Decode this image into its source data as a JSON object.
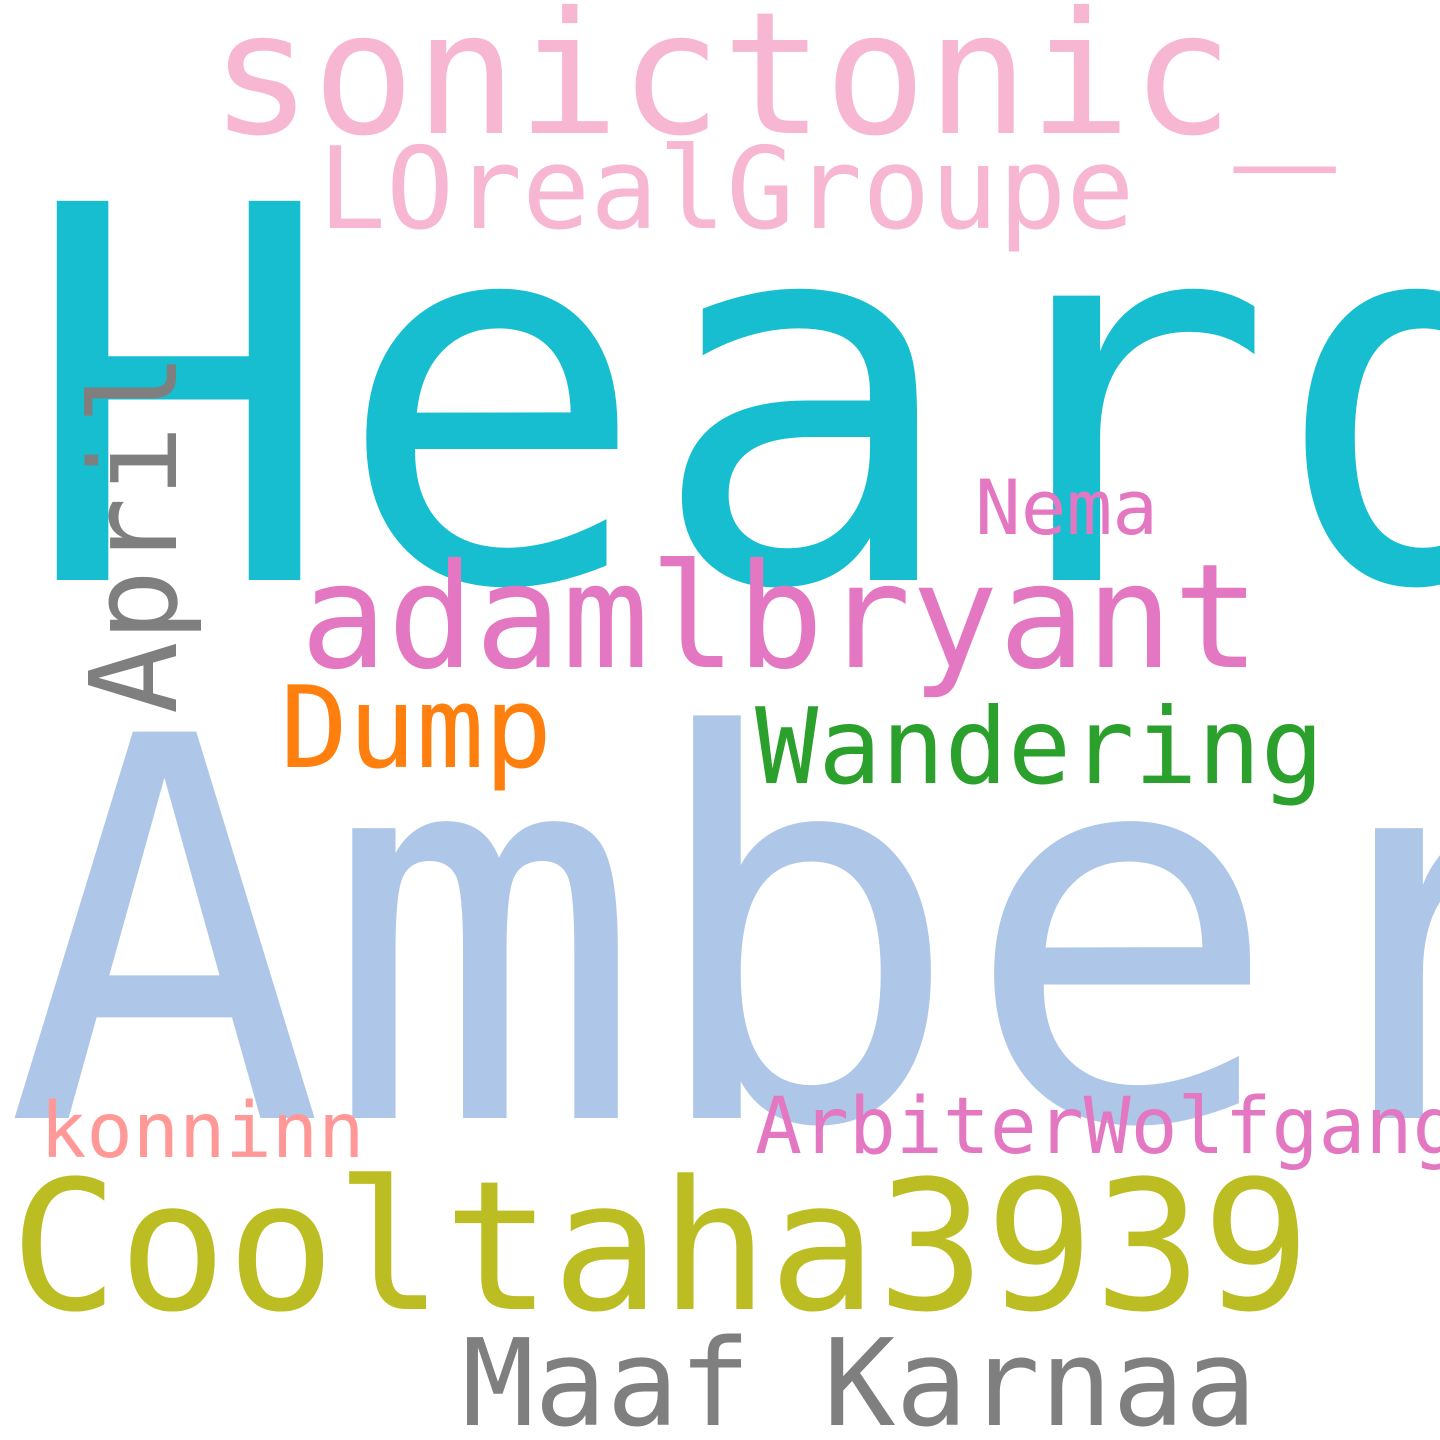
{
  "word_cloud": {
    "words": [
      {
        "id": "heard",
        "text": "Heard",
        "color": "#17becf",
        "orientation": "horizontal"
      },
      {
        "id": "amber",
        "text": "Amber",
        "color": "#aec7e8",
        "orientation": "horizontal"
      },
      {
        "id": "sonictonic",
        "text": "sonictonic_",
        "color": "#f7b6d2",
        "orientation": "horizontal"
      },
      {
        "id": "lorealgroupe",
        "text": "LOrealGroupe",
        "color": "#f7b6d2",
        "orientation": "horizontal"
      },
      {
        "id": "adamlbryant",
        "text": "adamlbryant",
        "color": "#e377c2",
        "orientation": "horizontal"
      },
      {
        "id": "nema",
        "text": "Nema",
        "color": "#e377c2",
        "orientation": "horizontal"
      },
      {
        "id": "dump",
        "text": "Dump",
        "color": "#ff7f0e",
        "orientation": "horizontal"
      },
      {
        "id": "wandering",
        "text": "Wandering",
        "color": "#2ca02c",
        "orientation": "horizontal"
      },
      {
        "id": "april",
        "text": "April",
        "color": "#7f7f7f",
        "orientation": "vertical"
      },
      {
        "id": "konninn",
        "text": "konninn",
        "color": "#ff9896",
        "orientation": "horizontal"
      },
      {
        "id": "arbiter",
        "text": "ArbiterWolfgang",
        "color": "#e377c2",
        "orientation": "horizontal"
      },
      {
        "id": "cooltaha",
        "text": "Cooltaha3939",
        "color": "#bcbd22",
        "orientation": "horizontal"
      },
      {
        "id": "maaf",
        "text": "Maaf_Karnaa",
        "color": "#7f7f7f",
        "orientation": "horizontal"
      }
    ]
  }
}
